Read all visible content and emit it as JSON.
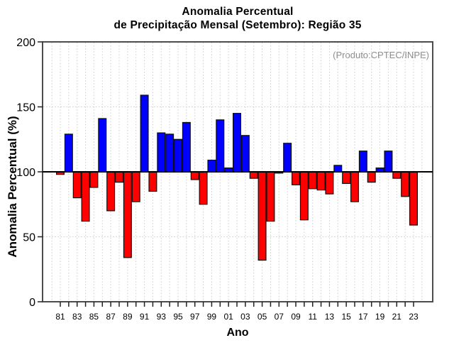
{
  "header": {
    "title_line1": "Anomalia Percentual",
    "title_line2": "de Precipitação Mensal (Setembro): Região 35",
    "annotation": "(Produto:CPTEC/INPE)"
  },
  "chart_data": {
    "type": "bar",
    "title": "Anomalia Percentual de Precipitação Mensal (Setembro): Região 35",
    "xlabel": "Ano",
    "ylabel": "Anomalia Percentual (%)",
    "ylim": [
      0,
      200
    ],
    "yticks": [
      0,
      50,
      100,
      150,
      200
    ],
    "baseline": 100,
    "grid": "dotted",
    "grid_color": "#cccccc",
    "bar_color_above": "#0000ff",
    "bar_color_below": "#ff0000",
    "years": [
      1981,
      1982,
      1983,
      1984,
      1985,
      1986,
      1987,
      1988,
      1989,
      1990,
      1991,
      1992,
      1993,
      1994,
      1995,
      1996,
      1997,
      1998,
      1999,
      2000,
      2001,
      2002,
      2003,
      2004,
      2005,
      2006,
      2007,
      2008,
      2009,
      2010,
      2011,
      2012,
      2013,
      2014,
      2015,
      2016,
      2017,
      2018,
      2019,
      2020,
      2021,
      2022,
      2023
    ],
    "x_tick_labels": [
      "81",
      "83",
      "85",
      "87",
      "89",
      "91",
      "93",
      "95",
      "97",
      "99",
      "01",
      "03",
      "05",
      "07",
      "09",
      "11",
      "13",
      "15",
      "17",
      "19",
      "21",
      "23"
    ],
    "values": [
      98,
      129,
      80,
      62,
      88,
      141,
      70,
      92,
      34,
      77,
      159,
      85,
      130,
      129,
      125,
      138,
      94,
      75,
      109,
      140,
      103,
      145,
      128,
      95,
      32,
      62,
      99,
      122,
      90,
      63,
      87,
      86,
      83,
      105,
      91,
      77,
      116,
      92,
      103,
      116,
      95,
      81,
      59
    ]
  }
}
